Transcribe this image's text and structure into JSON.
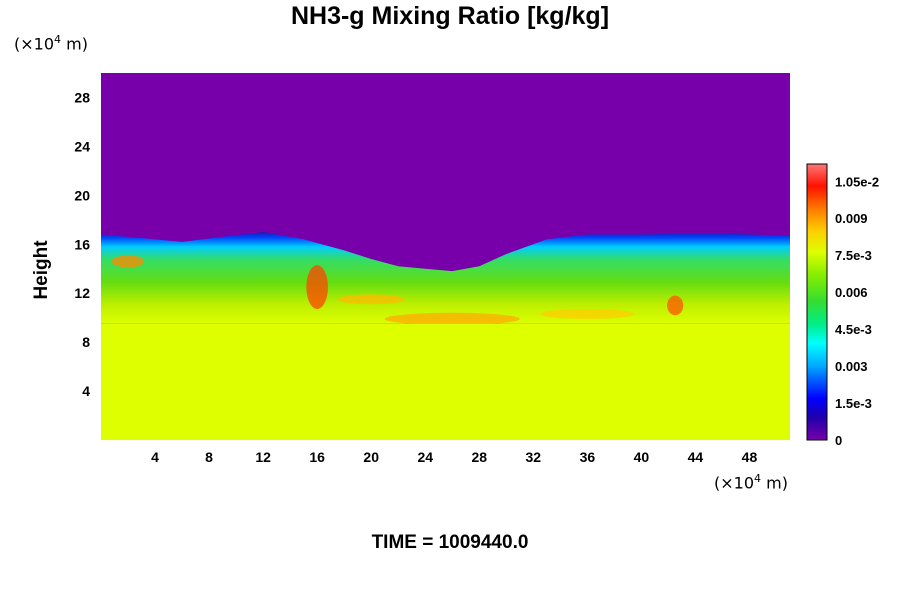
{
  "chart_data": {
    "type": "heatmap",
    "title": "NH3-g Mixing Ratio [kg/kg]",
    "ylabel": "Height",
    "x_unit": "×10",
    "x_unit_exp": "4",
    "x_unit_m": " m)",
    "y_unit": "×10",
    "y_unit_exp": "4",
    "y_unit_m": " m)",
    "xlim": [
      0,
      51
    ],
    "ylim": [
      0,
      30
    ],
    "x_ticks": [
      4,
      8,
      12,
      16,
      20,
      24,
      28,
      32,
      36,
      40,
      44,
      48
    ],
    "y_ticks": [
      4,
      8,
      12,
      16,
      20,
      24,
      28
    ],
    "colorbar": {
      "range": [
        0,
        0.0112
      ],
      "tick_values": [
        0,
        0.0015,
        0.003,
        0.0045,
        0.006,
        0.0075,
        0.009,
        0.0105
      ],
      "tick_labels": [
        "0",
        "1.5e-3",
        "0.003",
        "4.5e-3",
        "0.006",
        "7.5e-3",
        "0.009",
        "1.05e-2"
      ]
    },
    "field_summary": {
      "lower_layer_top": 9.5,
      "lower_layer_value": 0.0079,
      "upper_layer_value": 0,
      "transition_layer_top": [
        16.8,
        16.5,
        16.2,
        16.6,
        17,
        16.4,
        15.5,
        14.8,
        14.2,
        14.0,
        13.8,
        14.2,
        15.2,
        16.4,
        16.8,
        16.8,
        16.9,
        16.7
      ],
      "transition_layer_top_x": [
        0,
        3,
        6,
        9,
        12,
        15,
        18,
        20,
        22,
        24,
        26,
        28,
        30,
        33,
        36,
        40,
        45,
        51
      ]
    }
  },
  "time_label": "TIME = 1009440.0"
}
